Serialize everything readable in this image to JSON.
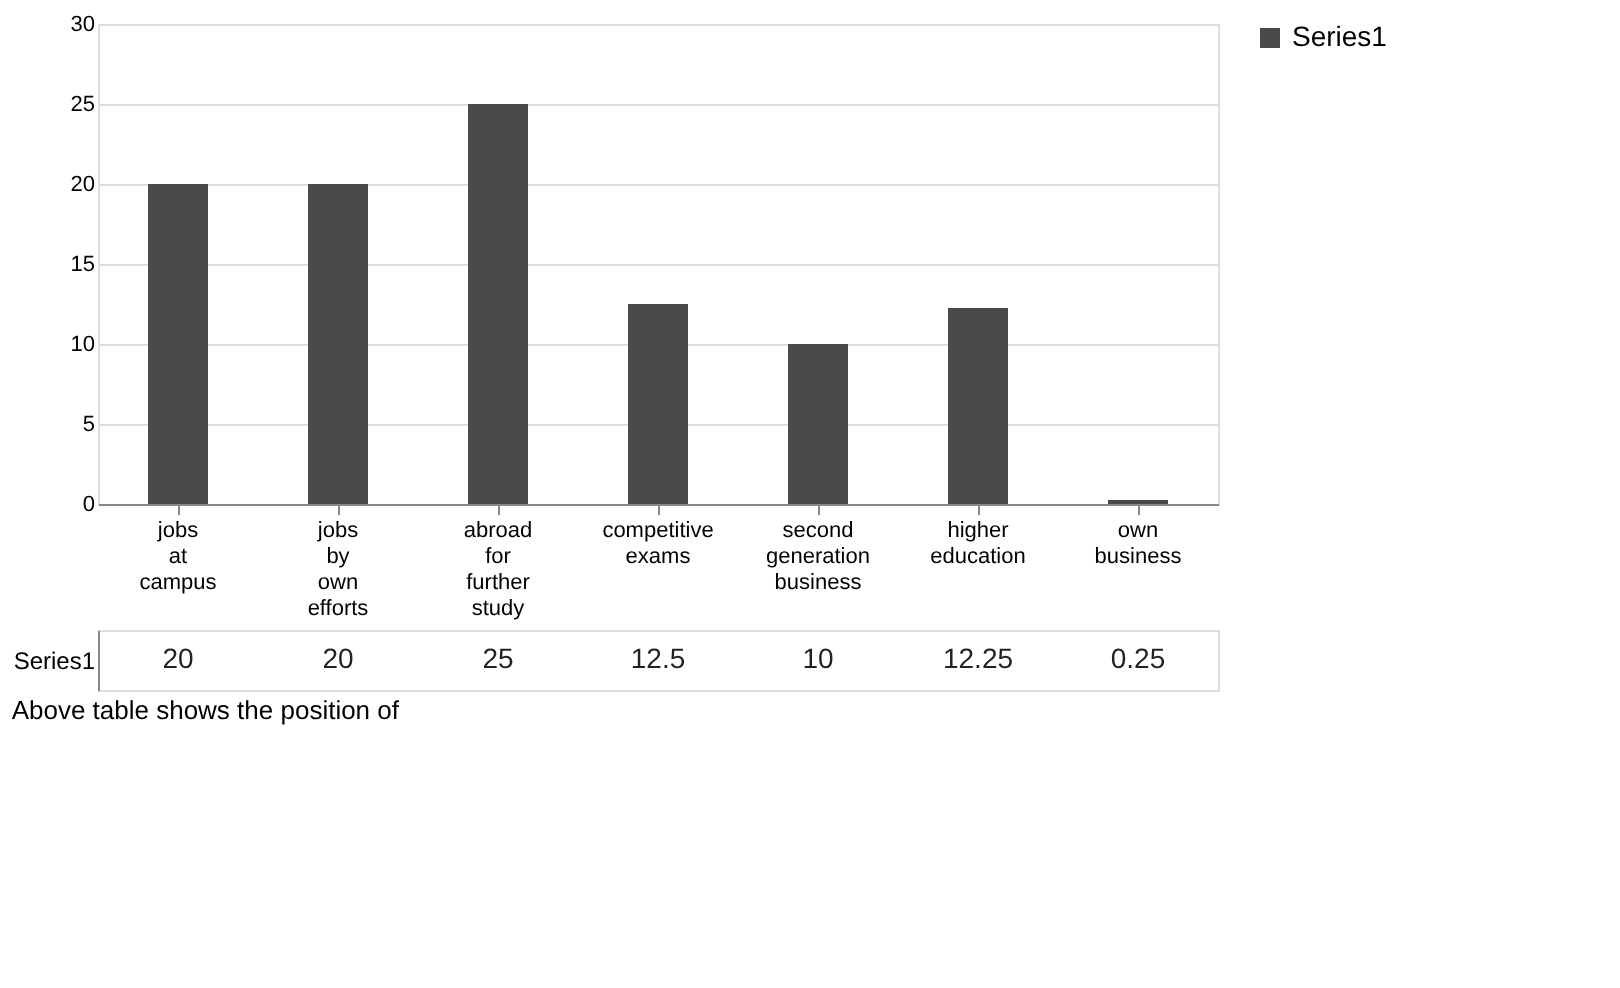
{
  "chart_data": {
    "type": "bar",
    "categories": [
      "jobs at campus",
      "jobs by own efforts",
      "abroad for further study",
      "competitive exams",
      "second generation business",
      "higher education",
      "own business"
    ],
    "series": [
      {
        "name": "Series1",
        "color": "#4a4a4a",
        "values": [
          20,
          20,
          25,
          12.5,
          10,
          12.25,
          0.25
        ]
      }
    ],
    "ylim": [
      0,
      30
    ],
    "yticks": [
      0,
      5,
      10,
      15,
      20,
      25,
      30
    ],
    "grid": "y",
    "legend": "right",
    "data_labels": true,
    "annotations": [
      "Above table shows the position of"
    ]
  }
}
